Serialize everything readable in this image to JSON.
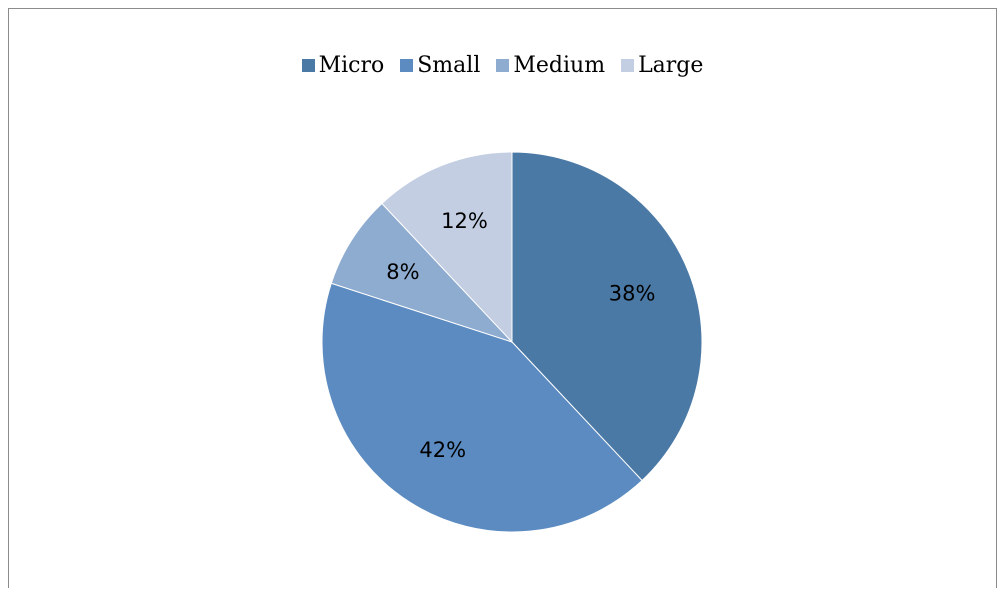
{
  "chart_data": {
    "type": "pie",
    "title": "",
    "categories": [
      "Micro",
      "Small",
      "Medium",
      "Large"
    ],
    "values": [
      38,
      42,
      8,
      12
    ],
    "value_labels": [
      "38%",
      "42%",
      "8%",
      "12%"
    ],
    "colors": [
      "#4a79a5",
      "#5b8bc0",
      "#8eabd0",
      "#c3cee3"
    ],
    "legend_position": "top",
    "start_angle": "12-o-clock",
    "direction": "clockwise"
  }
}
